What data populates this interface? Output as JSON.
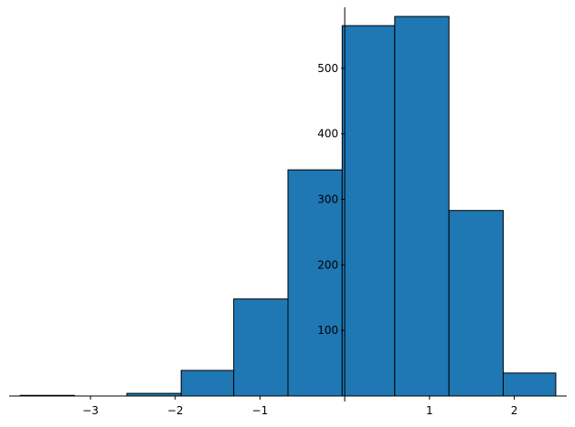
{
  "chart_data": {
    "type": "histogram",
    "bins": [
      -3.83,
      -3.19,
      -2.57,
      -1.93,
      -1.31,
      -0.67,
      -0.03,
      0.59,
      1.23,
      1.87,
      2.49
    ],
    "values": [
      1,
      0,
      4,
      39,
      148,
      345,
      565,
      579,
      283,
      35
    ],
    "color": "#1f77b4",
    "xlim": [
      -3.96,
      2.62
    ],
    "ylim": [
      0,
      593
    ],
    "xticks": [
      {
        "value": -3,
        "label": "−3"
      },
      {
        "value": -2,
        "label": "−2"
      },
      {
        "value": -1,
        "label": "−1"
      },
      1,
      2
    ],
    "yticks": [
      100,
      200,
      300,
      400,
      500
    ]
  }
}
